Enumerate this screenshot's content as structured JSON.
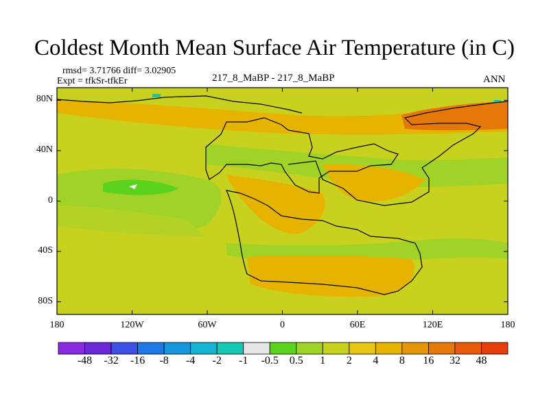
{
  "title": "Coldest Month Mean Surface Air Temperature (in C)",
  "stats": "rmsd= 3.71766 diff= 3.02905",
  "expt": "Expt = tfkSr-tfkEr",
  "center_label": "217_8_MaBP - 217_8_MaBP",
  "season": "ANN",
  "map": {
    "y_ticks": [
      {
        "label": "80N",
        "lat": 80
      },
      {
        "label": "40N",
        "lat": 40
      },
      {
        "label": "0",
        "lat": 0
      },
      {
        "label": "40S",
        "lat": -40
      },
      {
        "label": "80S",
        "lat": -80
      }
    ],
    "x_ticks": [
      {
        "label": "180",
        "lon": -180
      },
      {
        "label": "120W",
        "lon": -120
      },
      {
        "label": "60W",
        "lon": -60
      },
      {
        "label": "0",
        "lon": 0
      },
      {
        "label": "60E",
        "lon": 60
      },
      {
        "label": "120E",
        "lon": 120
      },
      {
        "label": "180",
        "lon": 180
      }
    ]
  },
  "colorbar": {
    "colors": [
      "#8a2be2",
      "#6a28d8",
      "#3c50e6",
      "#1e78e6",
      "#1496dc",
      "#14b4d2",
      "#14c8b4",
      "#e6e6e6",
      "#5ad21e",
      "#a0d228",
      "#c8d21e",
      "#e6c814",
      "#e6b400",
      "#e6960a",
      "#e6780a",
      "#e65a0a",
      "#e63c0a"
    ],
    "ticks": [
      "-48",
      "-32",
      "-16",
      "-8",
      "-4",
      "-2",
      "-1",
      "-0.5",
      "0.5",
      "1",
      "2",
      "4",
      "8",
      "16",
      "32",
      "48"
    ]
  },
  "colors": {
    "background_field": "#c8d21e",
    "ocean_green": "#a0d228",
    "land_warm": "#e6b400",
    "strong_warm": "#e6780a",
    "coastline": "#000000"
  }
}
